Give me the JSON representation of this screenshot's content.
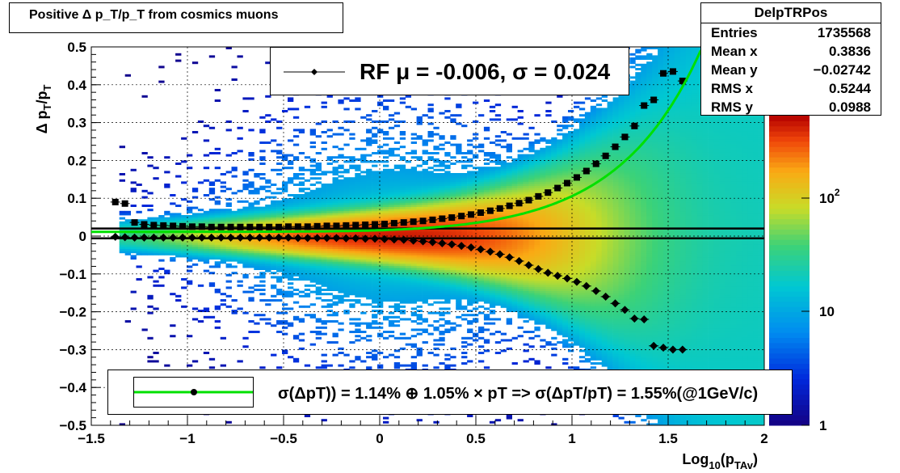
{
  "title": "Positive Δ p_T/p_T from cosmics muons",
  "stats": {
    "name": "DelpTRPos",
    "rows": [
      {
        "label": "Entries",
        "value": "1735568"
      },
      {
        "label": "Mean x",
        "value": "0.3836"
      },
      {
        "label": "Mean y",
        "value": "−0.02742"
      },
      {
        "label": "RMS x",
        "value": "0.5244"
      },
      {
        "label": "RMS y",
        "value": "0.0988"
      }
    ]
  },
  "legend_top": "RF μ = -0.006, σ =   0.024",
  "legend_bottom": "σ(ΔpT)) =  1.14% ⊕  1.05% × pT => σ(ΔpT/pT) =  1.55%(@1GeV/c)",
  "colors": {
    "fit_line": "#00e000",
    "markers": "#000000"
  },
  "chart_data": {
    "type": "heatmap",
    "title": "Positive Δ p_T/p_T from cosmics muons",
    "xlabel": "Log10(pTAv)",
    "ylabel": "Δ pT/pT",
    "xlim": [
      -1.5,
      2.0
    ],
    "ylim": [
      -0.5,
      0.5
    ],
    "x_ticks": [
      "−1.5",
      "−1",
      "−0.5",
      "0",
      "0.5",
      "1",
      "1.5",
      "2"
    ],
    "y_ticks": [
      "−0.5",
      "−0.4",
      "−0.3",
      "−0.2",
      "−0.1",
      "0",
      "0.1",
      "0.2",
      "0.3",
      "0.4",
      "0.5"
    ],
    "z_scale": "log",
    "z_ticks": [
      "1",
      "10",
      "10^2"
    ],
    "grid": true,
    "reference_lines_y": [
      0.02,
      -0.006
    ],
    "sigma_points": {
      "x": [
        -1.375,
        -1.325,
        -1.275,
        -1.225,
        -1.175,
        -1.125,
        -1.075,
        -1.025,
        -0.975,
        -0.925,
        -0.875,
        -0.825,
        -0.775,
        -0.725,
        -0.675,
        -0.625,
        -0.575,
        -0.525,
        -0.475,
        -0.425,
        -0.375,
        -0.325,
        -0.275,
        -0.225,
        -0.175,
        -0.125,
        -0.075,
        -0.025,
        0.025,
        0.075,
        0.125,
        0.175,
        0.225,
        0.275,
        0.325,
        0.375,
        0.425,
        0.475,
        0.525,
        0.575,
        0.625,
        0.675,
        0.725,
        0.775,
        0.825,
        0.875,
        0.925,
        0.975,
        1.025,
        1.075,
        1.125,
        1.175,
        1.225,
        1.275,
        1.325,
        1.375,
        1.425,
        1.475,
        1.525,
        1.575
      ],
      "y": [
        0.09,
        0.086,
        0.036,
        0.031,
        0.029,
        0.028,
        0.027,
        0.026,
        0.025,
        0.025,
        0.024,
        0.024,
        0.024,
        0.024,
        0.024,
        0.024,
        0.024,
        0.024,
        0.025,
        0.025,
        0.025,
        0.026,
        0.027,
        0.027,
        0.028,
        0.029,
        0.03,
        0.031,
        0.032,
        0.034,
        0.036,
        0.038,
        0.04,
        0.043,
        0.046,
        0.049,
        0.053,
        0.057,
        0.062,
        0.067,
        0.073,
        0.08,
        0.087,
        0.095,
        0.105,
        0.115,
        0.127,
        0.14,
        0.155,
        0.172,
        0.191,
        0.212,
        0.236,
        0.262,
        0.291,
        0.345,
        0.36,
        0.43,
        0.435,
        0.41
      ]
    },
    "mean_points": {
      "x": [
        -1.375,
        -1.325,
        -1.275,
        -1.225,
        -1.175,
        -1.125,
        -1.075,
        -1.025,
        -0.975,
        -0.925,
        -0.875,
        -0.825,
        -0.775,
        -0.725,
        -0.675,
        -0.625,
        -0.575,
        -0.525,
        -0.475,
        -0.425,
        -0.375,
        -0.325,
        -0.275,
        -0.225,
        -0.175,
        -0.125,
        -0.075,
        -0.025,
        0.025,
        0.075,
        0.125,
        0.175,
        0.225,
        0.275,
        0.325,
        0.375,
        0.425,
        0.475,
        0.525,
        0.575,
        0.625,
        0.675,
        0.725,
        0.775,
        0.825,
        0.875,
        0.925,
        0.975,
        1.025,
        1.075,
        1.125,
        1.175,
        1.225,
        1.275,
        1.325,
        1.375,
        1.425,
        1.475,
        1.525,
        1.575
      ],
      "y": [
        -0.002,
        -0.003,
        -0.004,
        -0.004,
        -0.004,
        -0.004,
        -0.004,
        -0.004,
        -0.004,
        -0.004,
        -0.004,
        -0.004,
        -0.004,
        -0.004,
        -0.004,
        -0.004,
        -0.004,
        -0.004,
        -0.004,
        -0.005,
        -0.005,
        -0.005,
        -0.005,
        -0.005,
        -0.006,
        -0.006,
        -0.007,
        -0.007,
        -0.008,
        -0.009,
        -0.01,
        -0.012,
        -0.014,
        -0.016,
        -0.019,
        -0.022,
        -0.026,
        -0.03,
        -0.035,
        -0.041,
        -0.048,
        -0.056,
        -0.066,
        -0.077,
        -0.087,
        -0.097,
        -0.105,
        -0.112,
        -0.121,
        -0.132,
        -0.145,
        -0.16,
        -0.178,
        -0.195,
        -0.218,
        -0.22,
        -0.29,
        -0.295,
        -0.3,
        -0.3
      ]
    },
    "fit_curve": {
      "a_percent": 1.14,
      "b_percent": 1.05
    }
  }
}
